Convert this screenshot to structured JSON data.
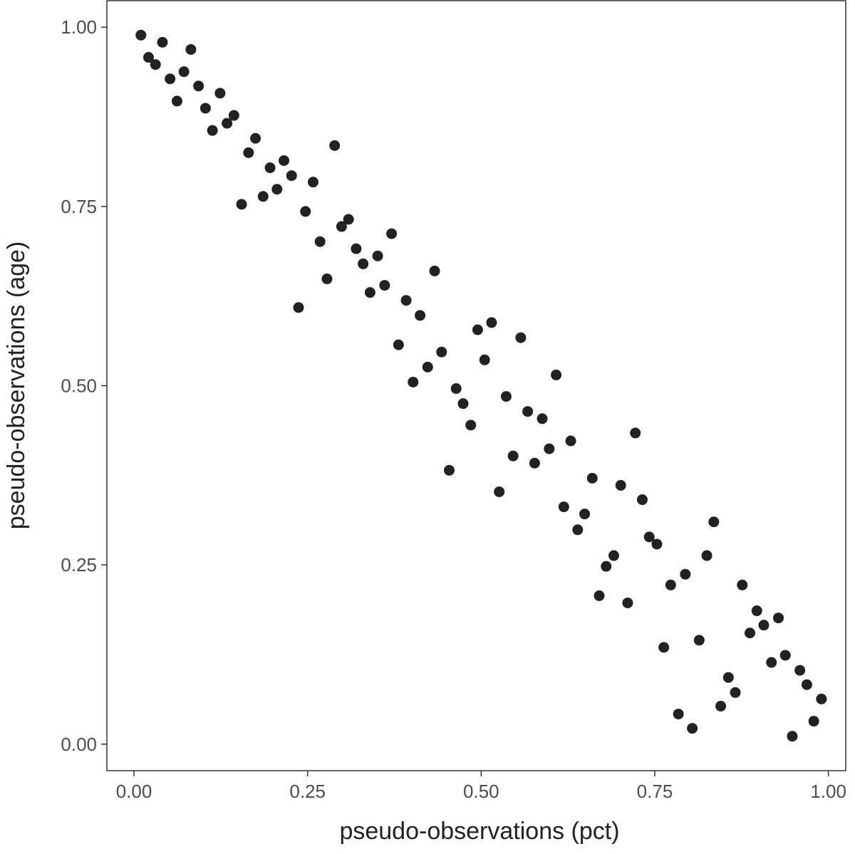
{
  "chart_data": {
    "type": "scatter",
    "x_label": "pseudo-observations (pct)",
    "y_label": "pseudo-observations (age)",
    "color": "#222222",
    "xlim": [
      -0.039,
      1.025
    ],
    "ylim": [
      -0.037,
      1.037
    ],
    "xticks": [
      {
        "value": 0,
        "label": "0.00"
      },
      {
        "value": 0.25,
        "label": "0.25"
      },
      {
        "value": 0.5,
        "label": "0.50"
      },
      {
        "value": 0.75,
        "label": "0.75"
      },
      {
        "value": 1,
        "label": "1.00"
      }
    ],
    "yticks": [
      {
        "value": 0,
        "label": "0.00"
      },
      {
        "value": 0.25,
        "label": "0.25"
      },
      {
        "value": 0.5,
        "label": "0.50"
      },
      {
        "value": 0.75,
        "label": "0.75"
      },
      {
        "value": 1,
        "label": "1.00"
      }
    ],
    "grid": false,
    "x": [
      0.01,
      0.021,
      0.031,
      0.041,
      0.052,
      0.062,
      0.072,
      0.082,
      0.093,
      0.103,
      0.113,
      0.124,
      0.134,
      0.144,
      0.155,
      0.165,
      0.175,
      0.186,
      0.196,
      0.206,
      0.216,
      0.227,
      0.237,
      0.247,
      0.258,
      0.268,
      0.278,
      0.289,
      0.299,
      0.309,
      0.32,
      0.33,
      0.34,
      0.351,
      0.361,
      0.371,
      0.381,
      0.392,
      0.402,
      0.412,
      0.423,
      0.433,
      0.443,
      0.454,
      0.464,
      0.474,
      0.485,
      0.495,
      0.505,
      0.515,
      0.526,
      0.536,
      0.546,
      0.557,
      0.567,
      0.577,
      0.588,
      0.598,
      0.608,
      0.619,
      0.629,
      0.639,
      0.649,
      0.66,
      0.67,
      0.68,
      0.691,
      0.701,
      0.711,
      0.722,
      0.732,
      0.742,
      0.753,
      0.763,
      0.773,
      0.784,
      0.794,
      0.804,
      0.814,
      0.825,
      0.835,
      0.845,
      0.856,
      0.866,
      0.876,
      0.887,
      0.897,
      0.907,
      0.918,
      0.928,
      0.938,
      0.948,
      0.959,
      0.969,
      0.979,
      0.99
    ],
    "values": [
      0.989,
      0.958,
      0.948,
      0.979,
      0.928,
      0.897,
      0.938,
      0.969,
      0.918,
      0.887,
      0.856,
      0.908,
      0.866,
      0.877,
      0.753,
      0.825,
      0.845,
      0.764,
      0.804,
      0.774,
      0.814,
      0.793,
      0.609,
      0.743,
      0.784,
      0.701,
      0.649,
      0.835,
      0.722,
      0.732,
      0.691,
      0.67,
      0.63,
      0.681,
      0.64,
      0.712,
      0.557,
      0.619,
      0.505,
      0.598,
      0.526,
      0.66,
      0.547,
      0.382,
      0.496,
      0.475,
      0.445,
      0.578,
      0.536,
      0.588,
      0.352,
      0.485,
      0.402,
      0.567,
      0.464,
      0.392,
      0.454,
      0.412,
      0.515,
      0.331,
      0.423,
      0.299,
      0.321,
      0.371,
      0.207,
      0.248,
      0.263,
      0.361,
      0.197,
      0.434,
      0.341,
      0.289,
      0.279,
      0.135,
      0.222,
      0.042,
      0.237,
      0.022,
      0.145,
      0.263,
      0.31,
      0.053,
      0.093,
      0.072,
      0.222,
      0.155,
      0.186,
      0.166,
      0.114,
      0.176,
      0.124,
      0.011,
      0.103,
      0.083,
      0.032,
      0.063
    ]
  }
}
